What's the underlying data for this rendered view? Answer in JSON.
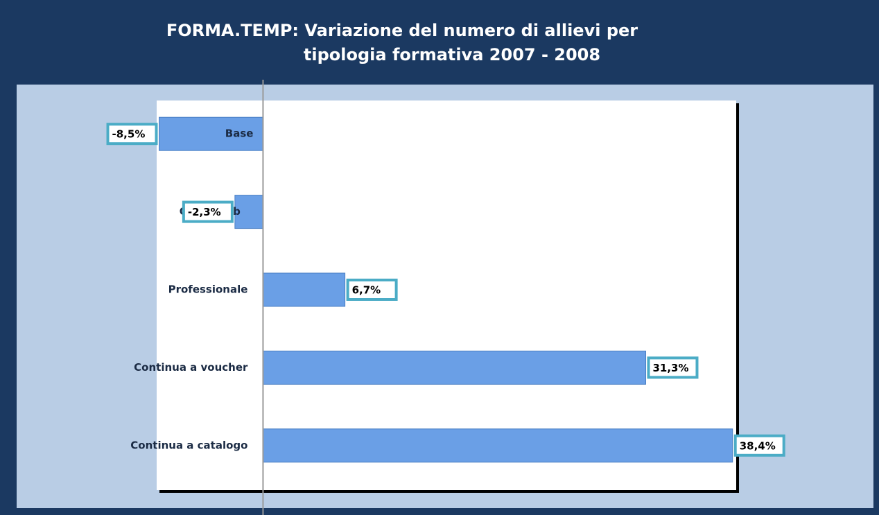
{
  "chart_data": {
    "type": "bar",
    "orientation": "horizontal",
    "title": [
      "FORMA.TEMP: Variazione del numero di allievi per",
      "tipologia formativa 2007 - 2008"
    ],
    "categories": [
      "Base",
      "On the job",
      "Professionale",
      "Continua a voucher",
      "Continua a catalogo"
    ],
    "values": [
      -8.5,
      -2.3,
      6.7,
      31.3,
      38.4
    ],
    "value_labels": [
      "-8,5%",
      "-2,3%",
      "6,7%",
      "31,3%",
      "38,4%"
    ],
    "color": "#6a9fe6",
    "xlim": [
      -8.7,
      38.7
    ]
  }
}
